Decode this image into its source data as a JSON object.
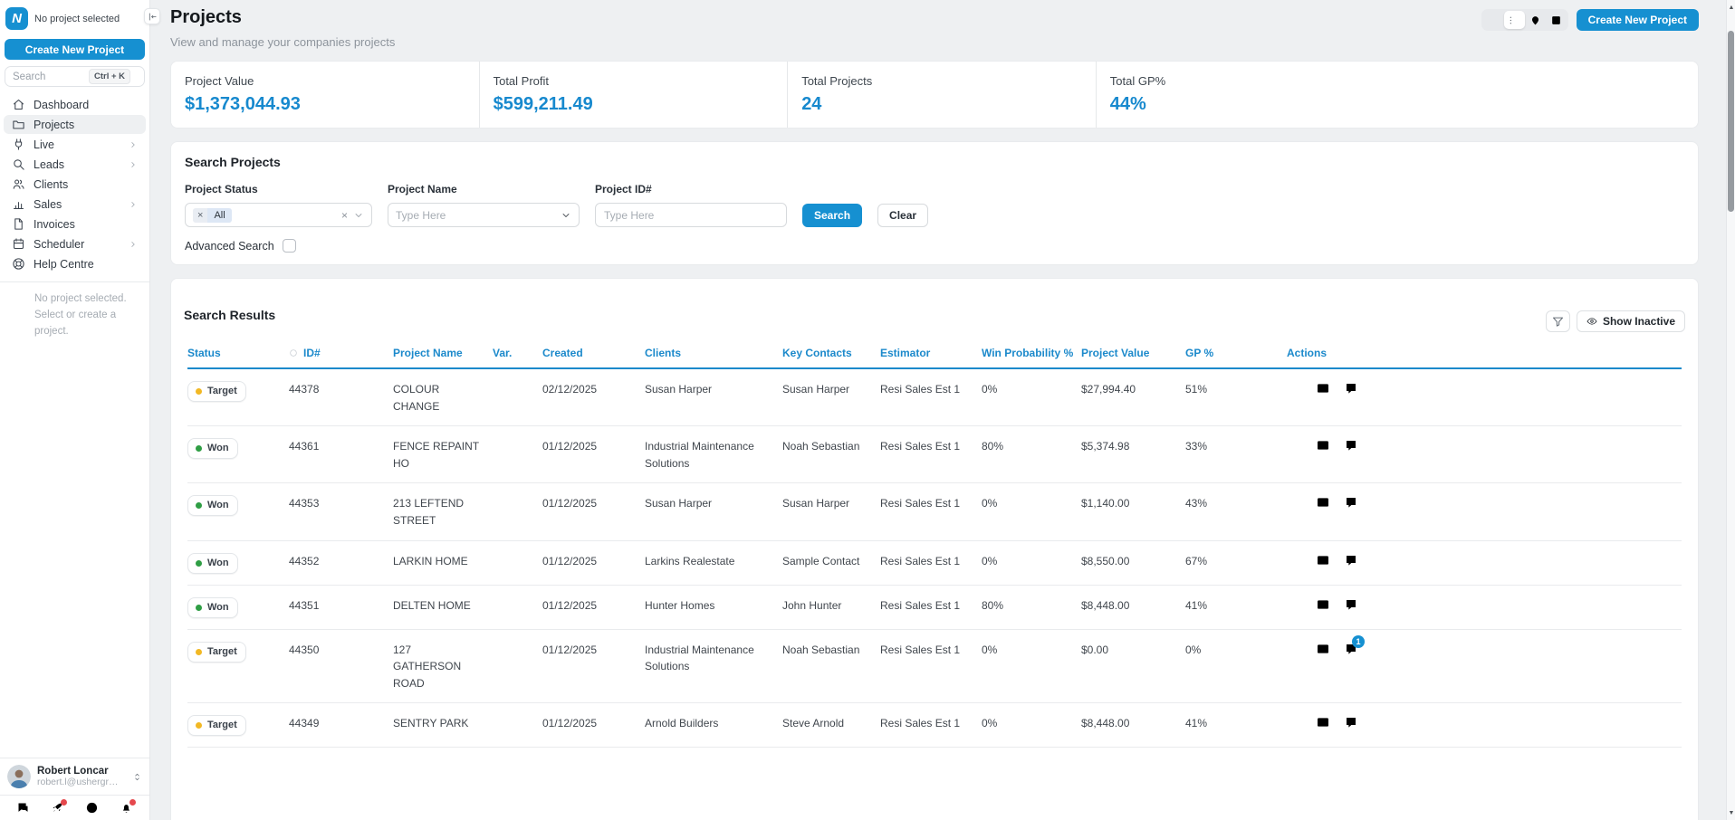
{
  "sidebar": {
    "logo_text": "N",
    "project_status": "No project selected",
    "create_button": "Create New Project",
    "search": {
      "placeholder": "Search",
      "shortcut": "Ctrl + K"
    },
    "nav": [
      {
        "label": "Dashboard",
        "icon": "home",
        "active": false,
        "chevron": false
      },
      {
        "label": "Projects",
        "icon": "folder",
        "active": true,
        "chevron": false
      },
      {
        "label": "Live",
        "icon": "plug",
        "active": false,
        "chevron": true
      },
      {
        "label": "Leads",
        "icon": "leads",
        "active": false,
        "chevron": true
      },
      {
        "label": "Clients",
        "icon": "users",
        "active": false,
        "chevron": false
      },
      {
        "label": "Sales",
        "icon": "chart",
        "active": false,
        "chevron": true
      },
      {
        "label": "Invoices",
        "icon": "document",
        "active": false,
        "chevron": false
      },
      {
        "label": "Scheduler",
        "icon": "calendar",
        "active": false,
        "chevron": true
      },
      {
        "label": "Help Centre",
        "icon": "lifebuoy",
        "active": false,
        "chevron": false
      }
    ],
    "empty_note_line1": "No project selected.",
    "empty_note_line2": "Select or create a project.",
    "user": {
      "name": "Robert Loncar",
      "email": "robert.l@ushergroup...."
    }
  },
  "header": {
    "title": "Projects",
    "subtitle": "View and manage your companies projects",
    "create_button": "Create New Project"
  },
  "stats": [
    {
      "label": "Project Value",
      "value": "$1,373,044.93"
    },
    {
      "label": "Total Profit",
      "value": "$599,211.49"
    },
    {
      "label": "Total Projects",
      "value": "24"
    },
    {
      "label": "Total GP%",
      "value": "44%"
    }
  ],
  "search_panel": {
    "title": "Search Projects",
    "status_label": "Project Status",
    "status_tag": "All",
    "name_label": "Project Name",
    "name_placeholder": "Type Here",
    "id_label": "Project ID#",
    "id_placeholder": "Type Here",
    "search_button": "Search",
    "clear_button": "Clear",
    "advanced_label": "Advanced Search"
  },
  "results": {
    "title": "Search Results",
    "show_inactive": "Show Inactive",
    "columns": [
      "Status",
      "ID#",
      "Project Name",
      "Var.",
      "Created",
      "Clients",
      "Key Contacts",
      "Estimator",
      "Win Probability %",
      "Project Value",
      "GP %",
      "Actions"
    ],
    "rows": [
      {
        "status": "Target",
        "status_color": "#f2b824",
        "id": "44378",
        "name": "COLOUR CHANGE",
        "var": "",
        "created": "02/12/2025",
        "client": "Susan Harper",
        "contact": "Susan Harper",
        "estimator": "Resi Sales Est 1",
        "win": "0%",
        "value": "$27,994.40",
        "gp": "51%",
        "comment_badge": ""
      },
      {
        "status": "Won",
        "status_color": "#2f9e44",
        "id": "44361",
        "name": "FENCE REPAINT HO",
        "var": "",
        "created": "01/12/2025",
        "client": "Industrial Maintenance Solutions",
        "contact": "Noah Sebastian",
        "estimator": "Resi Sales Est 1",
        "win": "80%",
        "value": "$5,374.98",
        "gp": "33%",
        "comment_badge": ""
      },
      {
        "status": "Won",
        "status_color": "#2f9e44",
        "id": "44353",
        "name": "213 LEFTEND STREET",
        "var": "",
        "created": "01/12/2025",
        "client": "Susan Harper",
        "contact": "Susan Harper",
        "estimator": "Resi Sales Est 1",
        "win": "0%",
        "value": "$1,140.00",
        "gp": "43%",
        "comment_badge": ""
      },
      {
        "status": "Won",
        "status_color": "#2f9e44",
        "id": "44352",
        "name": "LARKIN HOME",
        "var": "",
        "created": "01/12/2025",
        "client": "Larkins Realestate",
        "contact": "Sample Contact",
        "estimator": "Resi Sales Est 1",
        "win": "0%",
        "value": "$8,550.00",
        "gp": "67%",
        "comment_badge": ""
      },
      {
        "status": "Won",
        "status_color": "#2f9e44",
        "id": "44351",
        "name": "DELTEN HOME",
        "var": "",
        "created": "01/12/2025",
        "client": "Hunter Homes",
        "contact": "John Hunter",
        "estimator": "Resi Sales Est 1",
        "win": "80%",
        "value": "$8,448.00",
        "gp": "41%",
        "comment_badge": ""
      },
      {
        "status": "Target",
        "status_color": "#f2b824",
        "id": "44350",
        "name": "127 GATHERSON ROAD",
        "var": "",
        "created": "01/12/2025",
        "client": "Industrial Maintenance Solutions",
        "contact": "Noah Sebastian",
        "estimator": "Resi Sales Est 1",
        "win": "0%",
        "value": "$0.00",
        "gp": "0%",
        "comment_badge": "1"
      },
      {
        "status": "Target",
        "status_color": "#f2b824",
        "id": "44349",
        "name": "SENTRY PARK",
        "var": "",
        "created": "01/12/2025",
        "client": "Arnold Builders",
        "contact": "Steve Arnold",
        "estimator": "Resi Sales Est 1",
        "win": "0%",
        "value": "$8,448.00",
        "gp": "41%",
        "comment_badge": ""
      }
    ]
  },
  "colors": {
    "accent": "#1690d1",
    "table_header": "#1b89cb",
    "won_dot": "#2f9e44",
    "target_dot": "#f2b824",
    "alert_dot": "#e5484d"
  }
}
